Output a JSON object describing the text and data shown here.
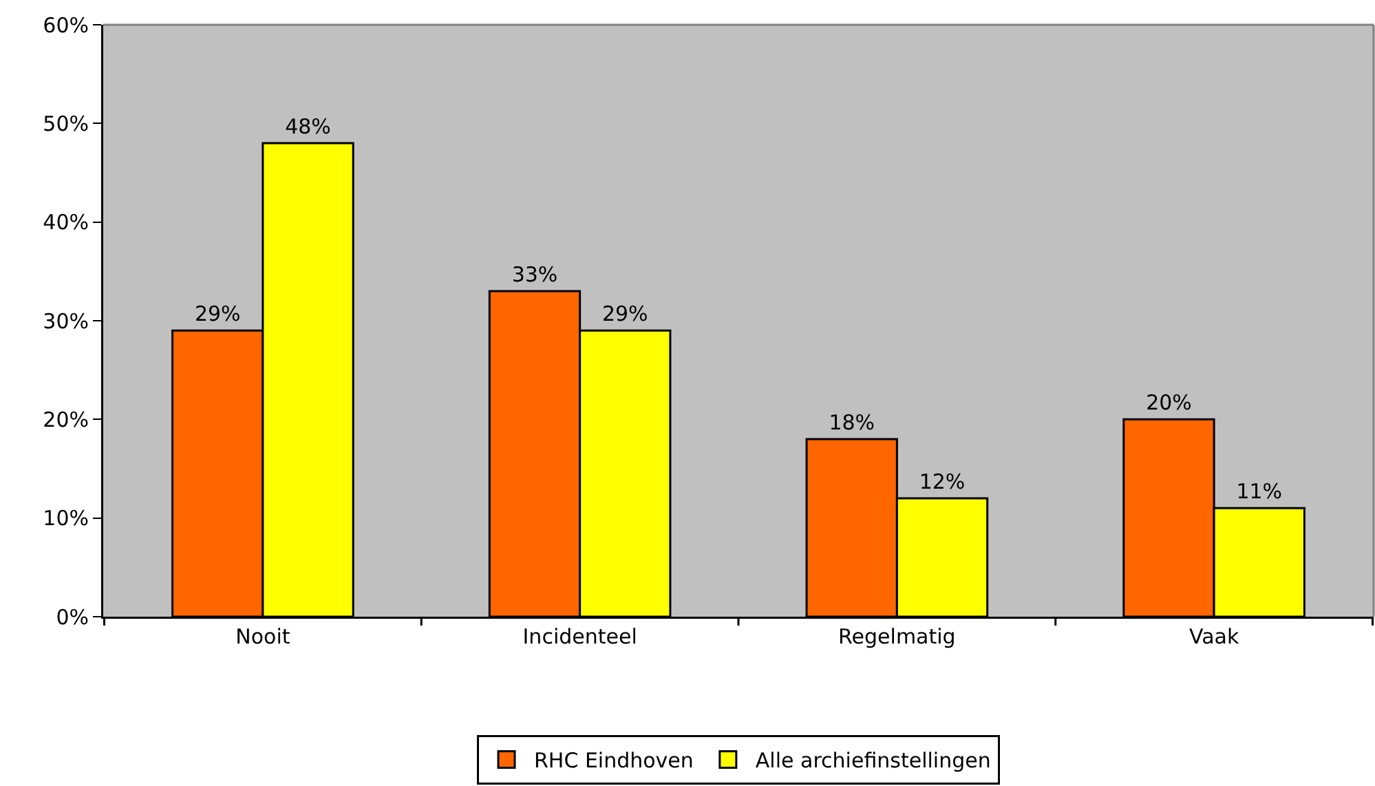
{
  "chart_data": {
    "type": "bar",
    "categories": [
      "Nooit",
      "Incidenteel",
      "Regelmatig",
      "Vaak"
    ],
    "series": [
      {
        "name": "RHC Eindhoven",
        "color": "#ff6600",
        "values": [
          29,
          33,
          18,
          20
        ],
        "value_labels": [
          "29%",
          "33%",
          "18%",
          "20%"
        ]
      },
      {
        "name": "Alle archiefinstellingen",
        "color": "#ffff00",
        "values": [
          48,
          29,
          12,
          11
        ],
        "value_labels": [
          "48%",
          "29%",
          "12%",
          "11%"
        ]
      }
    ],
    "ylim": [
      0,
      60
    ],
    "yticks": [
      {
        "value": 0,
        "label": "0%"
      },
      {
        "value": 10,
        "label": "10%"
      },
      {
        "value": 20,
        "label": "20%"
      },
      {
        "value": 30,
        "label": "30%"
      },
      {
        "value": 40,
        "label": "40%"
      },
      {
        "value": 50,
        "label": "50%"
      },
      {
        "value": 60,
        "label": "60%"
      }
    ],
    "grid": false,
    "legend": "bottom"
  }
}
